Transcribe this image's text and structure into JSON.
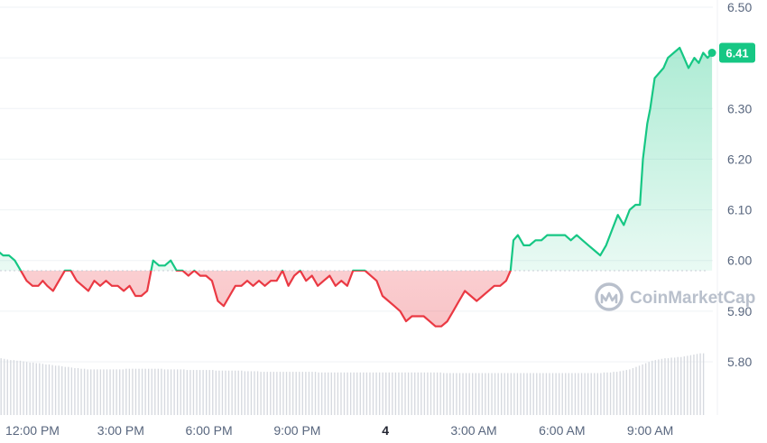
{
  "watermark": {
    "text": "CoinMarketCap",
    "icon": "coinmarketcap-logo-icon"
  },
  "colors": {
    "up": "#16c784",
    "down": "#ea3943",
    "grid": "#eff2f5",
    "baseline": "#c7ccd4",
    "volume": "#d6d9df",
    "axis_text": "#58667e"
  },
  "chart_data": {
    "type": "line",
    "title": "",
    "xlabel": "",
    "ylabel": "",
    "ylim": [
      5.7,
      6.51
    ],
    "y_ticks": [
      "6.50",
      "6.40",
      "6.30",
      "6.20",
      "6.10",
      "6.00",
      "5.90",
      "5.80"
    ],
    "x_ticks": [
      "12:00 PM",
      "3:00 PM",
      "6:00 PM",
      "9:00 PM",
      "4",
      "3:00 AM",
      "6:00 AM",
      "9:00 AM"
    ],
    "x_range_hours": [
      -1.4,
      10.8
    ],
    "baseline_price": 5.98,
    "current_price": "6.41",
    "current_value": 6.41,
    "grid": true,
    "series": [
      {
        "values": [
          [
            -1.4,
            6.01
          ],
          [
            -1.2,
            6.02
          ],
          [
            -1.0,
            6.01
          ],
          [
            -0.8,
            6.01
          ],
          [
            -0.6,
            6.0
          ],
          [
            -0.4,
            5.98
          ],
          [
            -0.2,
            5.96
          ],
          [
            0.0,
            5.95
          ],
          [
            0.2,
            5.95
          ],
          [
            0.35,
            5.96
          ],
          [
            0.5,
            5.95
          ],
          [
            0.7,
            5.94
          ],
          [
            0.9,
            5.96
          ],
          [
            1.1,
            5.98
          ],
          [
            1.3,
            5.98
          ],
          [
            1.5,
            5.96
          ],
          [
            1.7,
            5.95
          ],
          [
            1.9,
            5.94
          ],
          [
            2.1,
            5.96
          ],
          [
            2.3,
            5.95
          ],
          [
            2.5,
            5.96
          ],
          [
            2.7,
            5.95
          ],
          [
            2.9,
            5.95
          ],
          [
            3.1,
            5.94
          ],
          [
            3.3,
            5.95
          ],
          [
            3.5,
            5.93
          ],
          [
            3.7,
            5.93
          ],
          [
            3.9,
            5.94
          ],
          [
            4.1,
            6.0
          ],
          [
            4.3,
            5.99
          ],
          [
            4.5,
            5.99
          ],
          [
            4.7,
            6.0
          ],
          [
            4.9,
            5.98
          ],
          [
            5.1,
            5.98
          ],
          [
            5.3,
            5.97
          ],
          [
            5.5,
            5.98
          ],
          [
            5.7,
            5.97
          ],
          [
            5.9,
            5.97
          ],
          [
            6.1,
            5.96
          ],
          [
            6.3,
            5.92
          ],
          [
            6.5,
            5.91
          ],
          [
            6.7,
            5.93
          ],
          [
            6.9,
            5.95
          ],
          [
            7.1,
            5.95
          ],
          [
            7.3,
            5.96
          ],
          [
            7.5,
            5.95
          ],
          [
            7.7,
            5.96
          ],
          [
            7.9,
            5.95
          ],
          [
            8.1,
            5.96
          ],
          [
            8.3,
            5.96
          ],
          [
            8.5,
            5.98
          ],
          [
            8.7,
            5.95
          ],
          [
            8.9,
            5.97
          ],
          [
            9.1,
            5.98
          ],
          [
            9.3,
            5.96
          ],
          [
            9.5,
            5.97
          ],
          [
            9.7,
            5.95
          ],
          [
            9.9,
            5.96
          ],
          [
            10.1,
            5.97
          ],
          [
            10.3,
            5.95
          ],
          [
            10.5,
            5.96
          ],
          [
            10.7,
            5.95
          ],
          [
            10.9,
            5.98
          ],
          [
            11.1,
            5.98
          ],
          [
            11.3,
            5.98
          ],
          [
            11.5,
            5.97
          ],
          [
            11.7,
            5.96
          ],
          [
            11.9,
            5.93
          ],
          [
            12.1,
            5.92
          ],
          [
            12.3,
            5.91
          ],
          [
            12.5,
            5.9
          ],
          [
            12.7,
            5.88
          ],
          [
            12.9,
            5.89
          ],
          [
            13.1,
            5.89
          ],
          [
            13.3,
            5.89
          ],
          [
            13.5,
            5.88
          ],
          [
            13.7,
            5.87
          ],
          [
            13.9,
            5.87
          ],
          [
            14.1,
            5.88
          ],
          [
            14.3,
            5.9
          ],
          [
            14.5,
            5.92
          ],
          [
            14.7,
            5.94
          ],
          [
            14.9,
            5.93
          ],
          [
            15.1,
            5.92
          ],
          [
            15.3,
            5.93
          ],
          [
            15.5,
            5.94
          ],
          [
            15.7,
            5.95
          ],
          [
            15.9,
            5.95
          ],
          [
            16.1,
            5.96
          ],
          [
            16.25,
            5.98
          ],
          [
            16.35,
            6.04
          ],
          [
            16.5,
            6.05
          ],
          [
            16.7,
            6.03
          ],
          [
            16.9,
            6.03
          ],
          [
            17.1,
            6.04
          ],
          [
            17.3,
            6.04
          ],
          [
            17.5,
            6.05
          ],
          [
            17.7,
            6.05
          ],
          [
            17.9,
            6.05
          ],
          [
            18.1,
            6.05
          ],
          [
            18.3,
            6.04
          ],
          [
            18.5,
            6.05
          ],
          [
            18.7,
            6.04
          ],
          [
            18.9,
            6.03
          ],
          [
            19.1,
            6.02
          ],
          [
            19.3,
            6.01
          ],
          [
            19.5,
            6.03
          ],
          [
            19.7,
            6.06
          ],
          [
            19.9,
            6.09
          ],
          [
            20.1,
            6.07
          ],
          [
            20.3,
            6.1
          ],
          [
            20.5,
            6.11
          ],
          [
            20.65,
            6.11
          ],
          [
            20.75,
            6.2
          ],
          [
            20.9,
            6.27
          ],
          [
            21.0,
            6.3
          ],
          [
            21.15,
            6.36
          ],
          [
            21.3,
            6.37
          ],
          [
            21.45,
            6.38
          ],
          [
            21.6,
            6.4
          ],
          [
            21.8,
            6.41
          ],
          [
            22.0,
            6.42
          ],
          [
            22.15,
            6.4
          ],
          [
            22.3,
            6.38
          ],
          [
            22.5,
            6.4
          ],
          [
            22.65,
            6.39
          ],
          [
            22.8,
            6.41
          ],
          [
            22.95,
            6.4
          ],
          [
            23.1,
            6.41
          ]
        ]
      }
    ],
    "volume": [
      0.92,
      0.91,
      0.9,
      0.89,
      0.89,
      0.88,
      0.88,
      0.87,
      0.86,
      0.85,
      0.85,
      0.84,
      0.84,
      0.83,
      0.82,
      0.82,
      0.81,
      0.8,
      0.8,
      0.79,
      0.78,
      0.78,
      0.77,
      0.76,
      0.76,
      0.75,
      0.75,
      0.74,
      0.74,
      0.74,
      0.74,
      0.74,
      0.74,
      0.74,
      0.74,
      0.74,
      0.74,
      0.74,
      0.74,
      0.75,
      0.75,
      0.75,
      0.75,
      0.75,
      0.75,
      0.75,
      0.75,
      0.75,
      0.75,
      0.75,
      0.75,
      0.74,
      0.74,
      0.74,
      0.74,
      0.74,
      0.74,
      0.74,
      0.73,
      0.73,
      0.73,
      0.73,
      0.73,
      0.73,
      0.73,
      0.73,
      0.73,
      0.72,
      0.72,
      0.72,
      0.72,
      0.72,
      0.72,
      0.72,
      0.72,
      0.72,
      0.71,
      0.71,
      0.71,
      0.71,
      0.71,
      0.7,
      0.7,
      0.7,
      0.7,
      0.7,
      0.7,
      0.7,
      0.7,
      0.7,
      0.7,
      0.7,
      0.7,
      0.7,
      0.7,
      0.7,
      0.7,
      0.7,
      0.7,
      0.69,
      0.69,
      0.69,
      0.69,
      0.69,
      0.69,
      0.69,
      0.69,
      0.69,
      0.69,
      0.69,
      0.69,
      0.69,
      0.69,
      0.69,
      0.69,
      0.69,
      0.69,
      0.69,
      0.69,
      0.69,
      0.69,
      0.69,
      0.69,
      0.69,
      0.69,
      0.69,
      0.69,
      0.69,
      0.69,
      0.69,
      0.69,
      0.69,
      0.69,
      0.69,
      0.69,
      0.69,
      0.69,
      0.69,
      0.68,
      0.68,
      0.68,
      0.68,
      0.68,
      0.68,
      0.68,
      0.68,
      0.68,
      0.68,
      0.68,
      0.68,
      0.68,
      0.68,
      0.68,
      0.68,
      0.68,
      0.68,
      0.68,
      0.68,
      0.68,
      0.68,
      0.68,
      0.68,
      0.68,
      0.68,
      0.68,
      0.68,
      0.68,
      0.68,
      0.68,
      0.68,
      0.68,
      0.68,
      0.68,
      0.68,
      0.68,
      0.68,
      0.68,
      0.68,
      0.68,
      0.68,
      0.68,
      0.68,
      0.68,
      0.68,
      0.68,
      0.68,
      0.68,
      0.68,
      0.69,
      0.69,
      0.69,
      0.7,
      0.7,
      0.71,
      0.72,
      0.73,
      0.74,
      0.76,
      0.78,
      0.8,
      0.82,
      0.84,
      0.86,
      0.88,
      0.89,
      0.9,
      0.91,
      0.92,
      0.92,
      0.93,
      0.93,
      0.94,
      0.94,
      0.95,
      0.96,
      0.97,
      0.98,
      0.99,
      1.0,
      1.0
    ]
  }
}
